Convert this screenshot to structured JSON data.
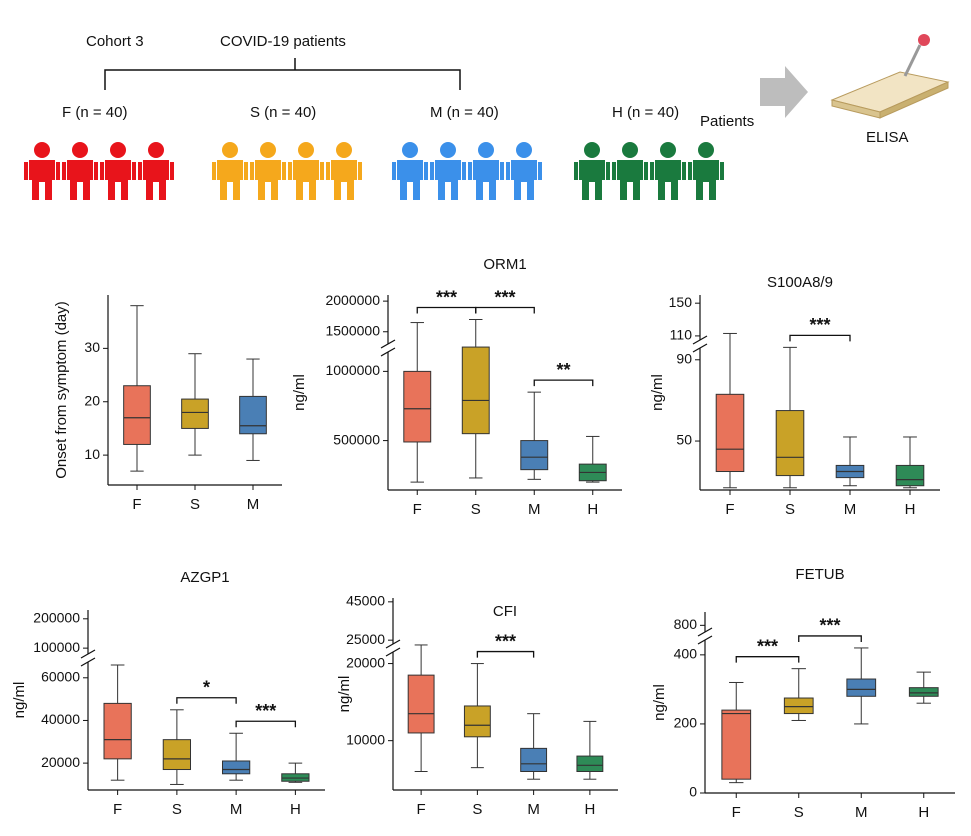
{
  "diagram": {
    "cohort": "Cohort 3",
    "patients_label": "COVID-19 patients",
    "groups": [
      {
        "label": "F (n = 40)",
        "color": "#e8141b"
      },
      {
        "label": "S (n = 40)",
        "color": "#f5a81c"
      },
      {
        "label": "M (n = 40)",
        "color": "#3b90ea"
      },
      {
        "label": "H (n = 40)",
        "color": "#1a7a3e"
      }
    ],
    "arrow_label": "Patients",
    "assay": "ELISA"
  },
  "chart_data": [
    {
      "type": "box",
      "ylabel": "Onset from symptom (day)",
      "categories": [
        "F",
        "S",
        "M"
      ],
      "colors": [
        "#e8735a",
        "#c9a227",
        "#4a7fb5"
      ],
      "boxes": [
        {
          "min": 7,
          "q1": 12,
          "median": 17,
          "q3": 23,
          "max": 38
        },
        {
          "min": 10,
          "q1": 15,
          "median": 18,
          "q3": 20.5,
          "max": 29
        },
        {
          "min": 9,
          "q1": 14,
          "median": 15.5,
          "q3": 21,
          "max": 28
        }
      ],
      "segments": [
        {
          "ylim": [
            4.4,
            40
          ],
          "yticks": [
            10,
            20,
            30
          ]
        }
      ],
      "annotations": []
    },
    {
      "type": "box",
      "title": "ORM1",
      "ylabel": "ng/ml",
      "categories": [
        "F",
        "S",
        "M",
        "H"
      ],
      "colors": [
        "#e8735a",
        "#c9a227",
        "#4a7fb5",
        "#2e8b57"
      ],
      "boxes": [
        {
          "min": 200000,
          "q1": 490000,
          "median": 730000,
          "q3": 1000000,
          "max": 1650000
        },
        {
          "min": 230000,
          "q1": 550000,
          "median": 790000,
          "q3": 1250000,
          "max": 1700000
        },
        {
          "min": 220000,
          "q1": 290000,
          "median": 380000,
          "q3": 500000,
          "max": 850000
        },
        {
          "min": 200000,
          "q1": 210000,
          "median": 270000,
          "q3": 330000,
          "max": 530000
        }
      ],
      "segments": [
        {
          "ylim": [
            143000,
            1140000
          ],
          "yticks": [
            500000,
            1000000
          ]
        },
        {
          "ylim": [
            1300000,
            2100000
          ],
          "yticks": [
            1500000,
            2000000
          ]
        }
      ],
      "annotations": [
        {
          "pair": [
            "F",
            "S"
          ],
          "label": "***"
        },
        {
          "pair": [
            "S",
            "M"
          ],
          "label": "***"
        },
        {
          "pair": [
            "M",
            "H"
          ],
          "label": "**"
        }
      ]
    },
    {
      "type": "box",
      "title": "S100A8/9",
      "ylabel": "ng/ml",
      "categories": [
        "F",
        "S",
        "M",
        "H"
      ],
      "colors": [
        "#e8735a",
        "#c9a227",
        "#4a7fb5",
        "#2e8b57"
      ],
      "boxes": [
        {
          "min": 27,
          "q1": 35,
          "median": 46,
          "q3": 73,
          "max": 113
        },
        {
          "min": 27,
          "q1": 33,
          "median": 42,
          "q3": 65,
          "max": 96
        },
        {
          "min": 28,
          "q1": 32,
          "median": 35,
          "q3": 38,
          "max": 52
        },
        {
          "min": 27,
          "q1": 28,
          "median": 31,
          "q3": 38,
          "max": 52
        }
      ],
      "segments": [
        {
          "ylim": [
            25.9,
            95.8
          ],
          "yticks": [
            50,
            90
          ]
        },
        {
          "ylim": [
            105,
            160
          ],
          "yticks": [
            110,
            150
          ]
        }
      ],
      "annotations": [
        {
          "pair": [
            "S",
            "M"
          ],
          "label": "***"
        }
      ]
    },
    {
      "type": "box",
      "title": "AZGP1",
      "ylabel": "ng/ml",
      "categories": [
        "F",
        "S",
        "M",
        "H"
      ],
      "colors": [
        "#e8735a",
        "#c9a227",
        "#4a7fb5",
        "#2e8b57"
      ],
      "boxes": [
        {
          "min": 12000,
          "q1": 22000,
          "median": 31000,
          "q3": 48000,
          "max": 66000
        },
        {
          "min": 10000,
          "q1": 17000,
          "median": 22000,
          "q3": 31000,
          "max": 45000
        },
        {
          "min": 12000,
          "q1": 15000,
          "median": 17000,
          "q3": 21000,
          "max": 34000
        },
        {
          "min": 11000,
          "q1": 11500,
          "median": 13000,
          "q3": 15000,
          "max": 20000
        }
      ],
      "segments": [
        {
          "ylim": [
            7400,
            67400
          ],
          "yticks": [
            20000,
            40000,
            60000
          ]
        },
        {
          "ylim": [
            80000,
            230000
          ],
          "yticks": [
            100000,
            200000
          ]
        }
      ],
      "annotations": [
        {
          "pair": [
            "S",
            "M"
          ],
          "label": "*"
        },
        {
          "pair": [
            "M",
            "H"
          ],
          "label": "***"
        }
      ]
    },
    {
      "type": "box",
      "title": "CFI",
      "ylabel": "ng/ml",
      "categories": [
        "F",
        "S",
        "M",
        "H"
      ],
      "colors": [
        "#e8735a",
        "#c9a227",
        "#4a7fb5",
        "#2e8b57"
      ],
      "boxes": [
        {
          "min": 6000,
          "q1": 11000,
          "median": 13500,
          "q3": 18500,
          "max": 22500
        },
        {
          "min": 6500,
          "q1": 10500,
          "median": 12000,
          "q3": 14500,
          "max": 20000
        },
        {
          "min": 5000,
          "q1": 6000,
          "median": 7000,
          "q3": 9000,
          "max": 13500
        },
        {
          "min": 5000,
          "q1": 6000,
          "median": 6800,
          "q3": 8000,
          "max": 12500
        }
      ],
      "segments": [
        {
          "ylim": [
            3600,
            21500
          ],
          "yticks": [
            10000,
            20000
          ]
        },
        {
          "ylim": [
            23000,
            47000
          ],
          "yticks": [
            25000,
            45000
          ]
        }
      ],
      "annotations": [
        {
          "pair": [
            "S",
            "M"
          ],
          "label": "***"
        }
      ]
    },
    {
      "type": "box",
      "title": "FETUB",
      "ylabel": "ng/ml",
      "categories": [
        "F",
        "S",
        "M",
        "H"
      ],
      "colors": [
        "#e8735a",
        "#c9a227",
        "#4a7fb5",
        "#2e8b57"
      ],
      "boxes": [
        {
          "min": 30,
          "q1": 40,
          "median": 230,
          "q3": 240,
          "max": 320
        },
        {
          "min": 210,
          "q1": 230,
          "median": 250,
          "q3": 275,
          "max": 360
        },
        {
          "min": 200,
          "q1": 280,
          "median": 300,
          "q3": 330,
          "max": 420
        },
        {
          "min": 260,
          "q1": 280,
          "median": 290,
          "q3": 305,
          "max": 350
        }
      ],
      "segments": [
        {
          "ylim": [
            0,
            443
          ],
          "yticks": [
            0,
            200,
            400
          ]
        },
        {
          "ylim": [
            750,
            900
          ],
          "yticks": [
            800
          ]
        }
      ],
      "annotations": [
        {
          "pair": [
            "F",
            "S"
          ],
          "label": "***"
        },
        {
          "pair": [
            "S",
            "M"
          ],
          "label": "***"
        }
      ]
    }
  ]
}
